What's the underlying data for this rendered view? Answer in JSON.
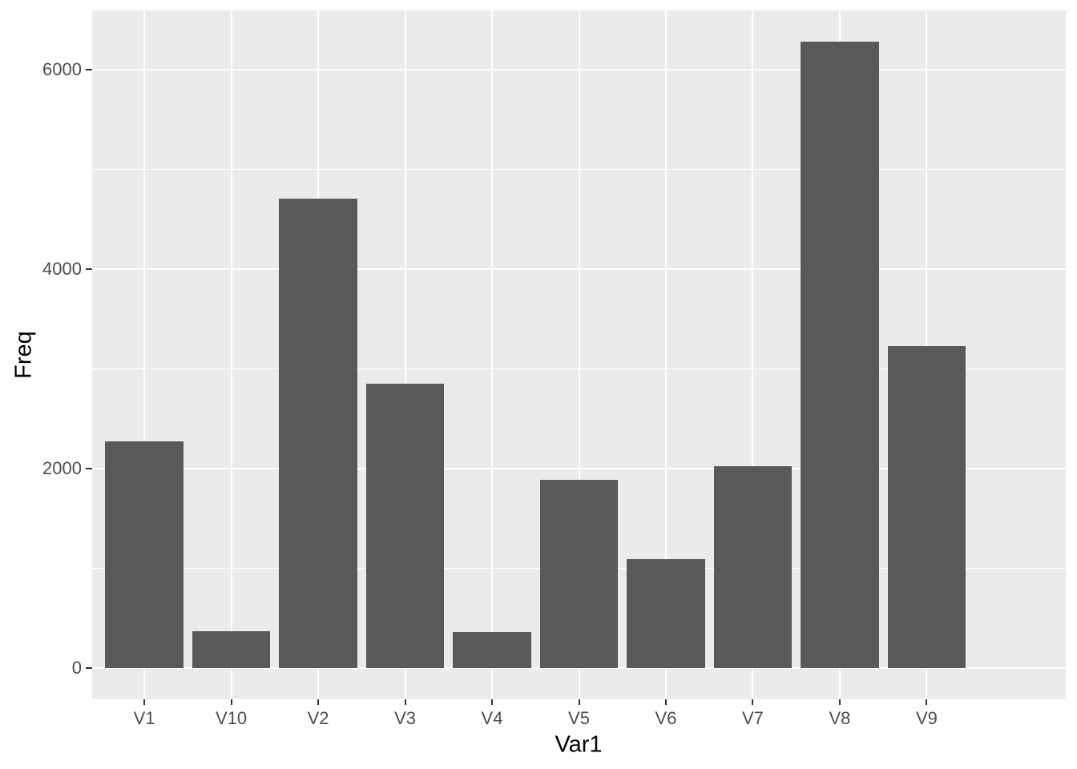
{
  "chart_data": {
    "type": "bar",
    "title": "",
    "xlabel": "Var1",
    "ylabel": "Freq",
    "categories": [
      "V1",
      "V10",
      "V2",
      "V3",
      "V4",
      "V5",
      "V6",
      "V7",
      "V8",
      "V9"
    ],
    "values": [
      2275,
      370,
      4705,
      2855,
      357,
      1890,
      1095,
      2020,
      6280,
      3230
    ],
    "y_ticks": [
      0,
      2000,
      4000,
      6000
    ],
    "y_minor_gridlines": [
      1000,
      3000,
      5000
    ],
    "ylim": [
      0,
      6280
    ],
    "bar_width_fraction": 0.9,
    "grid": true,
    "legend": "none",
    "colors": {
      "bar_fill": "#595959",
      "panel_background": "#EBEBEB",
      "gridline": "#FFFFFF",
      "axis_text": "#4D4D4D",
      "axis_title": "#000000",
      "tick_mark": "#333333",
      "page_background": "#FFFFFF"
    }
  }
}
